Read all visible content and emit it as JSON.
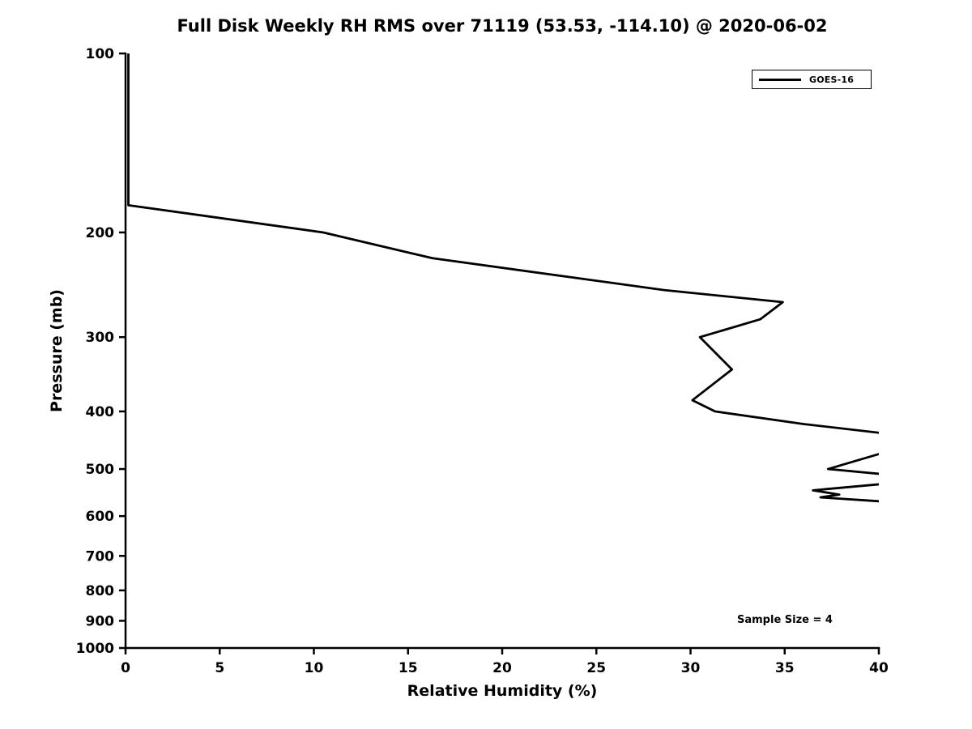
{
  "figure": {
    "title": "Full Disk Weekly RH RMS over 71119 (53.53, -114.10) @ 2020-06-02",
    "xlabel": "Relative Humidity (%)",
    "ylabel": "Pressure (mb)",
    "annotation": "Sample Size = 4",
    "legend": {
      "entries": [
        {
          "label": "GOES-16",
          "color": "#000000"
        }
      ]
    }
  },
  "chart_data": {
    "type": "line",
    "title": "Full Disk Weekly RH RMS over 71119 (53.53, -114.10) @ 2020-06-02",
    "xlabel": "Relative Humidity (%)",
    "ylabel": "Pressure (mb)",
    "xlim": [
      0,
      40
    ],
    "ylim": [
      100,
      1000
    ],
    "y_scale": "log",
    "y_inverted": true,
    "x_ticks": [
      0,
      5,
      10,
      15,
      20,
      25,
      30,
      35,
      40
    ],
    "y_ticks": [
      100,
      200,
      300,
      400,
      500,
      600,
      700,
      800,
      900,
      1000
    ],
    "grid": false,
    "legend_position": "upper right",
    "annotation": "Sample Size = 4",
    "line_color": "#000000",
    "line_width": 2.8,
    "series": [
      {
        "name": "GOES-16",
        "points_rh_pressure": [
          [
            0.15,
            100
          ],
          [
            0.15,
            180
          ],
          [
            10.5,
            200
          ],
          [
            16.3,
            221
          ],
          [
            28.6,
            250
          ],
          [
            34.9,
            262
          ],
          [
            33.7,
            280
          ],
          [
            30.5,
            300
          ],
          [
            32.2,
            340
          ],
          [
            30.1,
            383
          ],
          [
            31.3,
            400
          ],
          [
            36.0,
            420
          ],
          [
            41.5,
            440
          ],
          [
            42.0,
            452
          ],
          [
            37.3,
            500
          ],
          [
            43.0,
            520
          ],
          [
            36.5,
            543
          ],
          [
            37.9,
            552
          ],
          [
            36.9,
            558
          ],
          [
            42.0,
            572
          ]
        ]
      }
    ]
  }
}
